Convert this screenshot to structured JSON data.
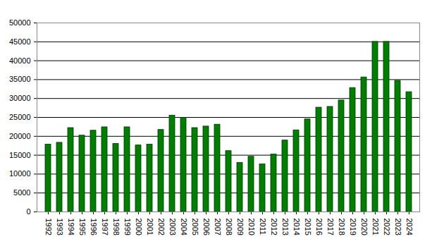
{
  "chart_data": {
    "type": "bar",
    "categories": [
      "1992",
      "1993",
      "1994",
      "1995",
      "1996",
      "1997",
      "1998",
      "1999",
      "2000",
      "2001",
      "2002",
      "2003",
      "2004",
      "2005",
      "2006",
      "2007",
      "2008",
      "2009",
      "2010",
      "2011",
      "2012",
      "2013",
      "2014",
      "2015",
      "2016",
      "2017",
      "2018",
      "2019",
      "2020",
      "2021",
      "2022",
      "2023",
      "2024"
    ],
    "values": [
      17800,
      18300,
      22200,
      20200,
      21500,
      22400,
      18000,
      22400,
      17600,
      17800,
      21700,
      25500,
      24900,
      22200,
      22600,
      23100,
      16100,
      13000,
      14600,
      12600,
      15200,
      18900,
      21600,
      24500,
      27600,
      27800,
      29500,
      32800,
      35600,
      45000,
      45000,
      34700,
      31700
    ],
    "color": "#008000",
    "ylim": [
      0,
      50000
    ],
    "yticks": [
      0,
      5000,
      10000,
      15000,
      20000,
      25000,
      30000,
      35000,
      40000,
      45000,
      50000
    ],
    "grid": true
  }
}
